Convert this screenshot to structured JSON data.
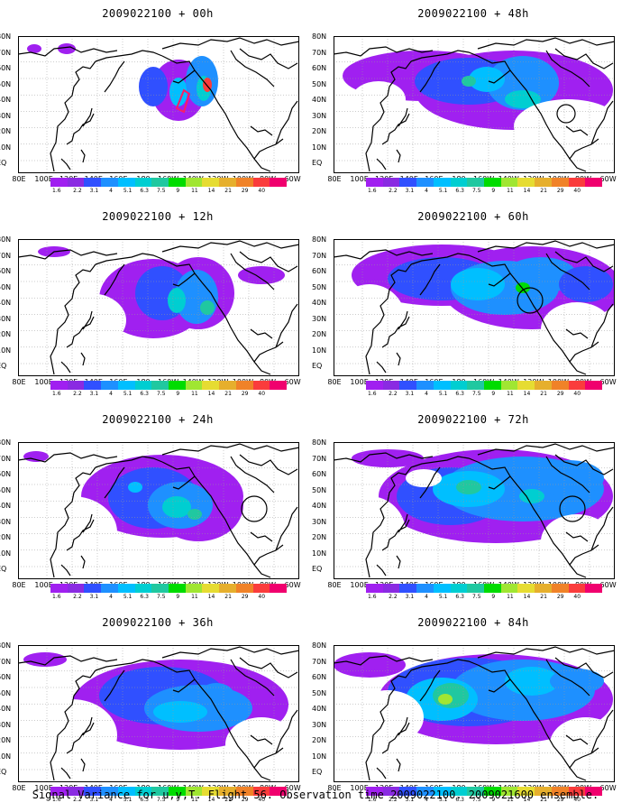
{
  "panels": [
    {
      "title": "2009022100 + 00h"
    },
    {
      "title": "2009022100 + 48h"
    },
    {
      "title": "2009022100 + 12h"
    },
    {
      "title": "2009022100 + 60h"
    },
    {
      "title": "2009022100 + 24h"
    },
    {
      "title": "2009022100 + 72h"
    },
    {
      "title": "2009022100 + 36h"
    },
    {
      "title": "2009022100 + 84h"
    }
  ],
  "lat_labels": [
    "80N",
    "70N",
    "60N",
    "50N",
    "40N",
    "30N",
    "20N",
    "10N",
    "EQ"
  ],
  "lon_labels": [
    "80E",
    "100E",
    "120E",
    "140E",
    "160E",
    "180",
    "160W",
    "140W",
    "120W",
    "100W",
    "80W",
    "60W"
  ],
  "colorbar": {
    "levels": [
      "1.6",
      "2.2",
      "3.1",
      "4",
      "5.1",
      "6.3",
      "7.5",
      "9",
      "11",
      "14",
      "21",
      "29",
      "40"
    ],
    "colors": [
      "#a020f0",
      "#8a2be2",
      "#3050ff",
      "#1e90ff",
      "#00bfff",
      "#00ced1",
      "#20c8a0",
      "#00dc00",
      "#a0e632",
      "#e6dc32",
      "#e6af2d",
      "#f08228",
      "#fa3c3c",
      "#f0006e"
    ]
  },
  "caption": "Signal Variance for u,v,T. Flight 56. Observation time 2009022100. 2009021600 ensemble."
}
